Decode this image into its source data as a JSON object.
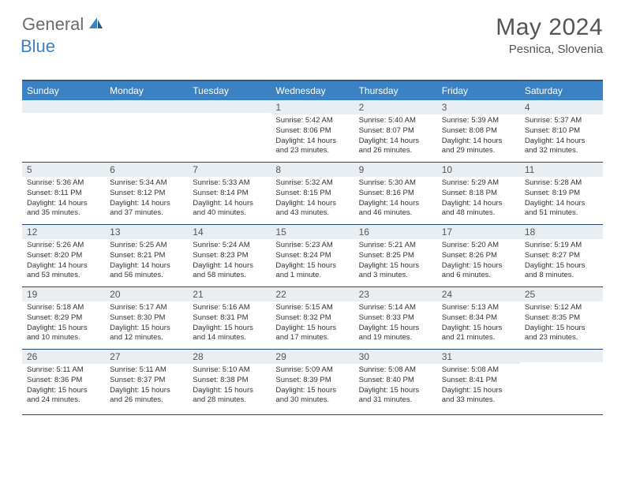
{
  "logo": {
    "text_general": "General",
    "text_blue": "Blue",
    "icon_color": "#3b82c4"
  },
  "header": {
    "month_title": "May 2024",
    "location": "Pesnica, Slovenia"
  },
  "colors": {
    "header_bar": "#3b82c4",
    "header_border_top": "#2c5a8c",
    "row_border": "#24476b",
    "cell_banner": "#e9eef3",
    "weekday_text": "#ffffff",
    "title_text": "#555555",
    "body_text": "#333333"
  },
  "weekdays": [
    "Sunday",
    "Monday",
    "Tuesday",
    "Wednesday",
    "Thursday",
    "Friday",
    "Saturday"
  ],
  "weeks": [
    [
      {
        "day": "",
        "sunrise": "",
        "sunset": "",
        "daylight1": "",
        "daylight2": ""
      },
      {
        "day": "",
        "sunrise": "",
        "sunset": "",
        "daylight1": "",
        "daylight2": ""
      },
      {
        "day": "",
        "sunrise": "",
        "sunset": "",
        "daylight1": "",
        "daylight2": ""
      },
      {
        "day": "1",
        "sunrise": "Sunrise: 5:42 AM",
        "sunset": "Sunset: 8:06 PM",
        "daylight1": "Daylight: 14 hours",
        "daylight2": "and 23 minutes."
      },
      {
        "day": "2",
        "sunrise": "Sunrise: 5:40 AM",
        "sunset": "Sunset: 8:07 PM",
        "daylight1": "Daylight: 14 hours",
        "daylight2": "and 26 minutes."
      },
      {
        "day": "3",
        "sunrise": "Sunrise: 5:39 AM",
        "sunset": "Sunset: 8:08 PM",
        "daylight1": "Daylight: 14 hours",
        "daylight2": "and 29 minutes."
      },
      {
        "day": "4",
        "sunrise": "Sunrise: 5:37 AM",
        "sunset": "Sunset: 8:10 PM",
        "daylight1": "Daylight: 14 hours",
        "daylight2": "and 32 minutes."
      }
    ],
    [
      {
        "day": "5",
        "sunrise": "Sunrise: 5:36 AM",
        "sunset": "Sunset: 8:11 PM",
        "daylight1": "Daylight: 14 hours",
        "daylight2": "and 35 minutes."
      },
      {
        "day": "6",
        "sunrise": "Sunrise: 5:34 AM",
        "sunset": "Sunset: 8:12 PM",
        "daylight1": "Daylight: 14 hours",
        "daylight2": "and 37 minutes."
      },
      {
        "day": "7",
        "sunrise": "Sunrise: 5:33 AM",
        "sunset": "Sunset: 8:14 PM",
        "daylight1": "Daylight: 14 hours",
        "daylight2": "and 40 minutes."
      },
      {
        "day": "8",
        "sunrise": "Sunrise: 5:32 AM",
        "sunset": "Sunset: 8:15 PM",
        "daylight1": "Daylight: 14 hours",
        "daylight2": "and 43 minutes."
      },
      {
        "day": "9",
        "sunrise": "Sunrise: 5:30 AM",
        "sunset": "Sunset: 8:16 PM",
        "daylight1": "Daylight: 14 hours",
        "daylight2": "and 46 minutes."
      },
      {
        "day": "10",
        "sunrise": "Sunrise: 5:29 AM",
        "sunset": "Sunset: 8:18 PM",
        "daylight1": "Daylight: 14 hours",
        "daylight2": "and 48 minutes."
      },
      {
        "day": "11",
        "sunrise": "Sunrise: 5:28 AM",
        "sunset": "Sunset: 8:19 PM",
        "daylight1": "Daylight: 14 hours",
        "daylight2": "and 51 minutes."
      }
    ],
    [
      {
        "day": "12",
        "sunrise": "Sunrise: 5:26 AM",
        "sunset": "Sunset: 8:20 PM",
        "daylight1": "Daylight: 14 hours",
        "daylight2": "and 53 minutes."
      },
      {
        "day": "13",
        "sunrise": "Sunrise: 5:25 AM",
        "sunset": "Sunset: 8:21 PM",
        "daylight1": "Daylight: 14 hours",
        "daylight2": "and 56 minutes."
      },
      {
        "day": "14",
        "sunrise": "Sunrise: 5:24 AM",
        "sunset": "Sunset: 8:23 PM",
        "daylight1": "Daylight: 14 hours",
        "daylight2": "and 58 minutes."
      },
      {
        "day": "15",
        "sunrise": "Sunrise: 5:23 AM",
        "sunset": "Sunset: 8:24 PM",
        "daylight1": "Daylight: 15 hours",
        "daylight2": "and 1 minute."
      },
      {
        "day": "16",
        "sunrise": "Sunrise: 5:21 AM",
        "sunset": "Sunset: 8:25 PM",
        "daylight1": "Daylight: 15 hours",
        "daylight2": "and 3 minutes."
      },
      {
        "day": "17",
        "sunrise": "Sunrise: 5:20 AM",
        "sunset": "Sunset: 8:26 PM",
        "daylight1": "Daylight: 15 hours",
        "daylight2": "and 6 minutes."
      },
      {
        "day": "18",
        "sunrise": "Sunrise: 5:19 AM",
        "sunset": "Sunset: 8:27 PM",
        "daylight1": "Daylight: 15 hours",
        "daylight2": "and 8 minutes."
      }
    ],
    [
      {
        "day": "19",
        "sunrise": "Sunrise: 5:18 AM",
        "sunset": "Sunset: 8:29 PM",
        "daylight1": "Daylight: 15 hours",
        "daylight2": "and 10 minutes."
      },
      {
        "day": "20",
        "sunrise": "Sunrise: 5:17 AM",
        "sunset": "Sunset: 8:30 PM",
        "daylight1": "Daylight: 15 hours",
        "daylight2": "and 12 minutes."
      },
      {
        "day": "21",
        "sunrise": "Sunrise: 5:16 AM",
        "sunset": "Sunset: 8:31 PM",
        "daylight1": "Daylight: 15 hours",
        "daylight2": "and 14 minutes."
      },
      {
        "day": "22",
        "sunrise": "Sunrise: 5:15 AM",
        "sunset": "Sunset: 8:32 PM",
        "daylight1": "Daylight: 15 hours",
        "daylight2": "and 17 minutes."
      },
      {
        "day": "23",
        "sunrise": "Sunrise: 5:14 AM",
        "sunset": "Sunset: 8:33 PM",
        "daylight1": "Daylight: 15 hours",
        "daylight2": "and 19 minutes."
      },
      {
        "day": "24",
        "sunrise": "Sunrise: 5:13 AM",
        "sunset": "Sunset: 8:34 PM",
        "daylight1": "Daylight: 15 hours",
        "daylight2": "and 21 minutes."
      },
      {
        "day": "25",
        "sunrise": "Sunrise: 5:12 AM",
        "sunset": "Sunset: 8:35 PM",
        "daylight1": "Daylight: 15 hours",
        "daylight2": "and 23 minutes."
      }
    ],
    [
      {
        "day": "26",
        "sunrise": "Sunrise: 5:11 AM",
        "sunset": "Sunset: 8:36 PM",
        "daylight1": "Daylight: 15 hours",
        "daylight2": "and 24 minutes."
      },
      {
        "day": "27",
        "sunrise": "Sunrise: 5:11 AM",
        "sunset": "Sunset: 8:37 PM",
        "daylight1": "Daylight: 15 hours",
        "daylight2": "and 26 minutes."
      },
      {
        "day": "28",
        "sunrise": "Sunrise: 5:10 AM",
        "sunset": "Sunset: 8:38 PM",
        "daylight1": "Daylight: 15 hours",
        "daylight2": "and 28 minutes."
      },
      {
        "day": "29",
        "sunrise": "Sunrise: 5:09 AM",
        "sunset": "Sunset: 8:39 PM",
        "daylight1": "Daylight: 15 hours",
        "daylight2": "and 30 minutes."
      },
      {
        "day": "30",
        "sunrise": "Sunrise: 5:08 AM",
        "sunset": "Sunset: 8:40 PM",
        "daylight1": "Daylight: 15 hours",
        "daylight2": "and 31 minutes."
      },
      {
        "day": "31",
        "sunrise": "Sunrise: 5:08 AM",
        "sunset": "Sunset: 8:41 PM",
        "daylight1": "Daylight: 15 hours",
        "daylight2": "and 33 minutes."
      },
      {
        "day": "",
        "sunrise": "",
        "sunset": "",
        "daylight1": "",
        "daylight2": ""
      }
    ]
  ]
}
